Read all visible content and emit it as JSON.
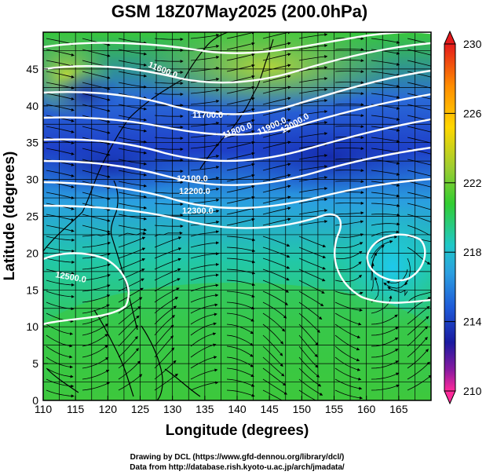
{
  "title": "GSM 18Z07May2025 (200.0hPa)",
  "xlabel": "Longitude (degrees)",
  "ylabel": "Latitude  (degrees)",
  "x_ticks": [
    "110",
    "115",
    "120",
    "125",
    "130",
    "135",
    "140",
    "145",
    "150",
    "155",
    "160",
    "165"
  ],
  "y_ticks": [
    "0",
    "5",
    "10",
    "15",
    "20",
    "25",
    "30",
    "35",
    "40",
    "45"
  ],
  "colorbar_ticks": [
    "230",
    "226",
    "222",
    "218",
    "214",
    "210"
  ],
  "contour_labels": [
    "11600.0",
    "11700.0",
    "11800.0",
    "11900.0",
    "12000.0",
    "12100.0",
    "12200.0",
    "12300.0",
    "12500.0"
  ],
  "credits": [
    "Drawing by DCL (https://www.gfd-dennou.org/library/dcl/)",
    "Data from http://database.rish.kyoto-u.ac.jp/arch/jmadata/"
  ],
  "map": {
    "lon_range": [
      110,
      170
    ],
    "lat_range": [
      0,
      50
    ],
    "variable_shading_range": [
      210,
      230
    ],
    "contour_color": "#ffffff",
    "coastline_color": "#000000",
    "grid": true,
    "streamlines": true
  }
}
